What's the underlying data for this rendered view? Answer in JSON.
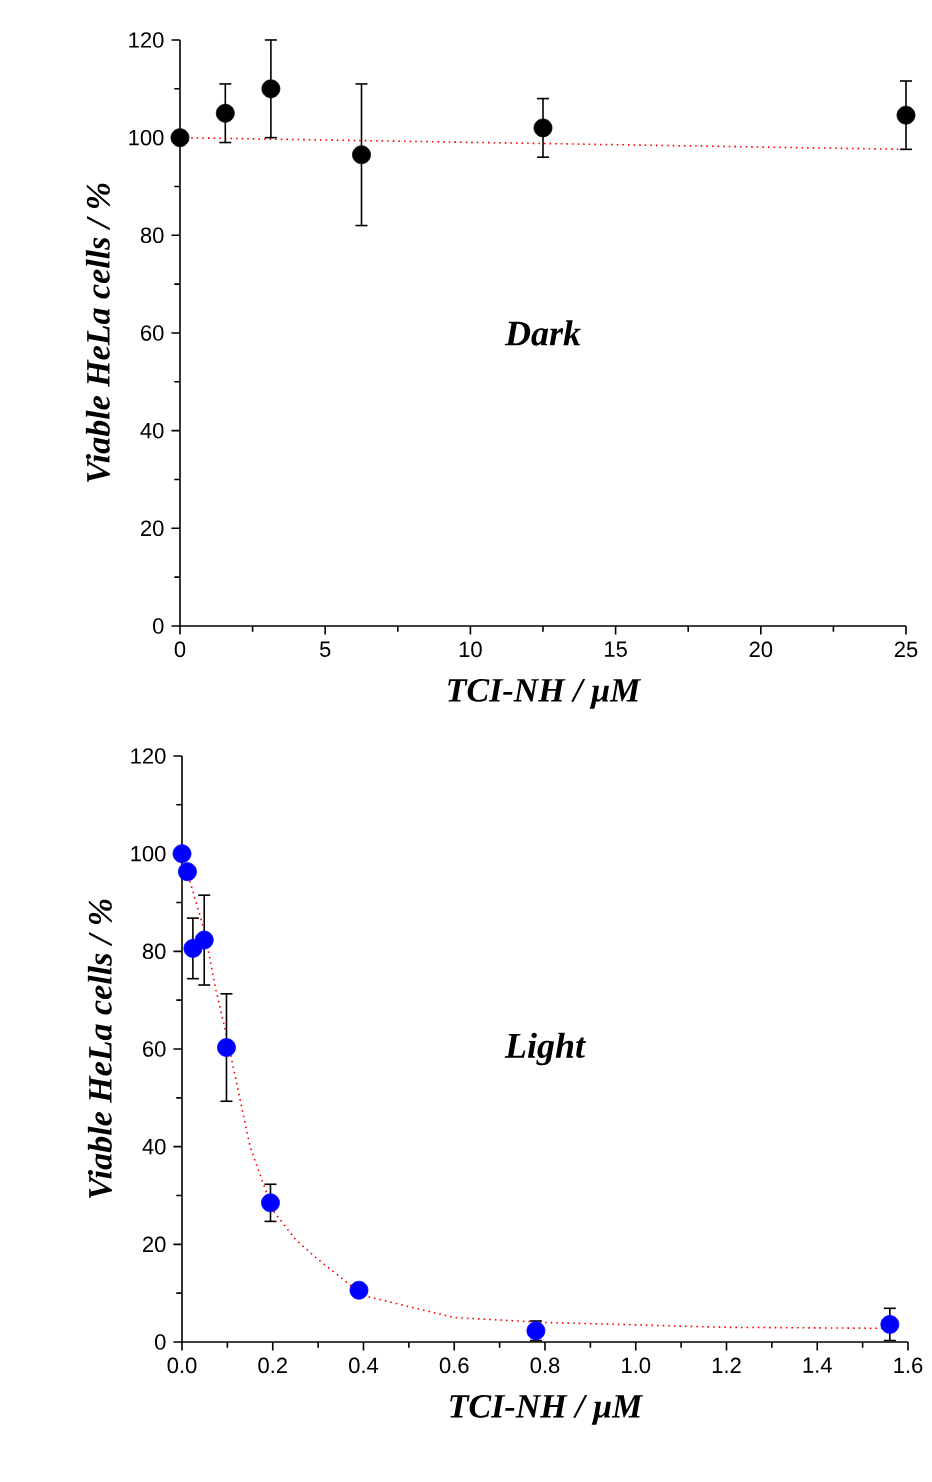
{
  "chart_data": [
    {
      "type": "scatter",
      "xlabel": "TCI-NH / μM",
      "ylabel": "Viable HeLa cells / %",
      "annotations": [
        "Dark"
      ],
      "xlim": [
        0,
        25
      ],
      "ylim": [
        0,
        120
      ],
      "xticks": [
        0,
        5,
        10,
        15,
        20,
        25
      ],
      "yticks": [
        0,
        20,
        40,
        60,
        80,
        100,
        120
      ],
      "grid": false,
      "x": [
        0,
        1.56,
        3.13,
        6.25,
        12.5,
        25
      ],
      "series": [
        {
          "type": "scatter",
          "marker": "circle",
          "color": "#000000",
          "values": [
            100,
            105,
            110,
            96.5,
            102,
            104.6
          ],
          "errors": [
            null,
            6,
            10,
            14.5,
            6,
            7
          ]
        },
        {
          "type": "line",
          "color": "#ff0000",
          "line_style": "dotted",
          "marker": "none",
          "x": [
            0,
            25
          ],
          "values": [
            100,
            97.6
          ]
        }
      ]
    },
    {
      "type": "scatter",
      "xlabel": "TCI-NH / μM",
      "ylabel": "Viable HeLa cells / %",
      "annotations": [
        "Light"
      ],
      "xlim": [
        0,
        1.6
      ],
      "ylim": [
        0,
        120
      ],
      "xticks": [
        {
          "value": 0,
          "label": "0.0"
        },
        {
          "value": 0.2,
          "label": "0.2"
        },
        {
          "value": 0.4,
          "label": "0.4"
        },
        {
          "value": 0.6,
          "label": "0.6"
        },
        {
          "value": 0.8,
          "label": "0.8"
        },
        {
          "value": 1.0,
          "label": "1.0"
        },
        {
          "value": 1.2,
          "label": "1.2"
        },
        {
          "value": 1.4,
          "label": "1.4"
        },
        {
          "value": 1.6,
          "label": "1.6"
        }
      ],
      "yticks": [
        0,
        20,
        40,
        60,
        80,
        100,
        120
      ],
      "grid": false,
      "x": [
        0,
        0.012,
        0.024,
        0.049,
        0.098,
        0.195,
        0.39,
        0.78,
        1.56
      ],
      "series": [
        {
          "type": "scatter",
          "marker": "circle",
          "color": "#0000ff",
          "values": [
            100,
            96.3,
            80.6,
            82.3,
            60.3,
            28.5,
            10.6,
            2.3,
            3.6
          ],
          "errors": [
            null,
            null,
            6.2,
            9.2,
            11,
            3.8,
            null,
            2,
            3.3
          ]
        },
        {
          "type": "line",
          "color": "#ff0000",
          "line_style": "dotted",
          "marker": "none",
          "x": [
            0,
            0.05,
            0.075,
            0.1,
            0.15,
            0.2,
            0.25,
            0.3,
            0.4,
            0.6,
            0.8,
            1.0,
            1.2,
            1.56
          ],
          "values": [
            99.9,
            84,
            72,
            62,
            40,
            27,
            21,
            16.9,
            9.5,
            5,
            4,
            3.5,
            3,
            2.8
          ]
        }
      ]
    }
  ]
}
